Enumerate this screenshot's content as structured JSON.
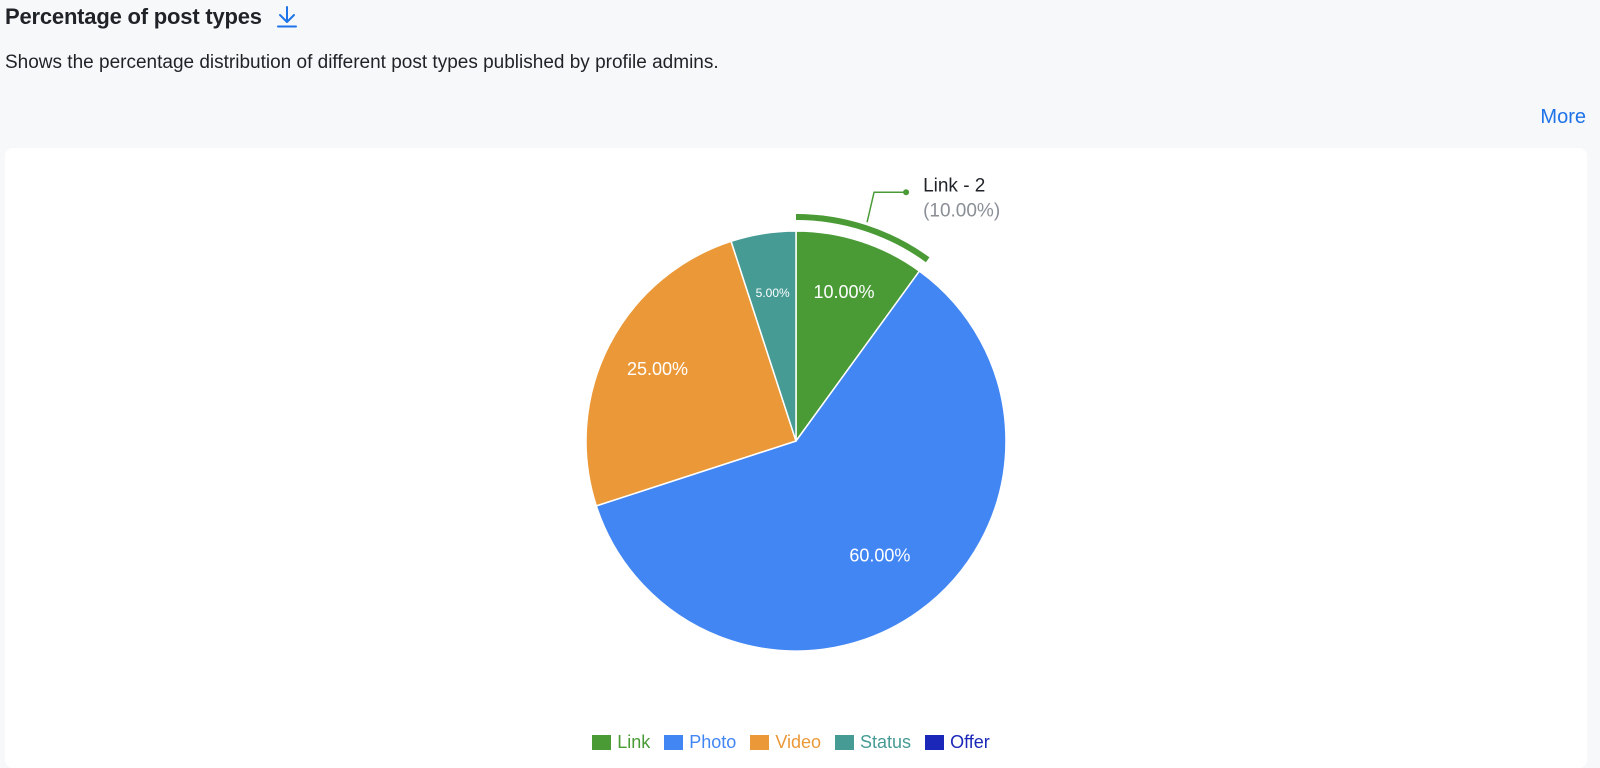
{
  "header": {
    "title": "Percentage of post types",
    "description": "Shows the percentage distribution of different post types published by profile admins.",
    "download_icon": "download-icon",
    "more_label": "More"
  },
  "colors": {
    "link": "#4a9a36",
    "photo": "#4286f4",
    "video": "#eb9938",
    "status": "#469b95",
    "offer": "#1a27b8",
    "accent": "#1f73e8"
  },
  "chart_data": {
    "type": "pie",
    "slices": [
      {
        "name": "Link",
        "value": 10.0,
        "label": "10.00%",
        "color": "#4a9a36",
        "count": 2
      },
      {
        "name": "Photo",
        "value": 60.0,
        "label": "60.00%",
        "color": "#4286f4"
      },
      {
        "name": "Video",
        "value": 25.0,
        "label": "25.00%",
        "color": "#eb9938"
      },
      {
        "name": "Status",
        "value": 5.0,
        "label": "5.00%",
        "color": "#469b95"
      },
      {
        "name": "Offer",
        "value": 0.0,
        "label": "",
        "color": "#1a27b8"
      }
    ],
    "highlighted": {
      "name": "Link",
      "label": "Link - 2",
      "percent_label": "(10.00%)"
    },
    "legend": [
      "Link",
      "Photo",
      "Video",
      "Status",
      "Offer"
    ],
    "legend_position": "bottom"
  }
}
